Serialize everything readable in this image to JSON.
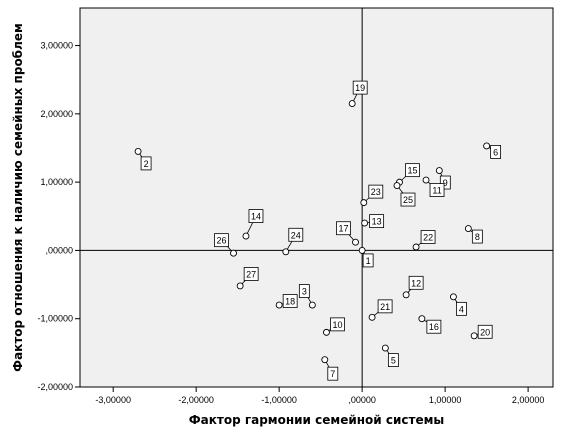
{
  "chart_data": {
    "type": "scatter",
    "xlabel": "Фактор гармонии семейной системы",
    "ylabel": "Фактор отношения к наличию семейных проблем",
    "xlim": [
      -3.4,
      2.3
    ],
    "ylim": [
      -2.0,
      3.55
    ],
    "x_ticks": [
      -3,
      -2,
      -1,
      0,
      1,
      2
    ],
    "x_tick_labels": [
      "-3,00000",
      "-2,00000",
      "-1,00000",
      ",00000",
      "1,00000",
      "2,00000"
    ],
    "y_ticks": [
      -2,
      -1,
      0,
      1,
      2,
      3
    ],
    "y_tick_labels": [
      "-2,00000",
      "-1,00000",
      ",00000",
      "1,00000",
      "2,00000",
      "3,00000"
    ],
    "reference_lines": {
      "x": 0,
      "y": 0
    },
    "grid": false,
    "legend": "none",
    "colors": {
      "plot_bg": "#f0f0f0",
      "marker_fill": "#ffffff",
      "marker_edge": "#000000"
    },
    "points": [
      {
        "label": "1",
        "x": 0.0,
        "y": 0.0
      },
      {
        "label": "2",
        "x": -2.7,
        "y": 1.45
      },
      {
        "label": "3",
        "x": -0.6,
        "y": -0.8
      },
      {
        "label": "4",
        "x": 1.1,
        "y": -0.68
      },
      {
        "label": "5",
        "x": 0.28,
        "y": -1.43
      },
      {
        "label": "6",
        "x": 1.5,
        "y": 1.53
      },
      {
        "label": "7",
        "x": -0.45,
        "y": -1.6
      },
      {
        "label": "8",
        "x": 1.28,
        "y": 0.32
      },
      {
        "label": "9",
        "x": 0.93,
        "y": 1.17
      },
      {
        "label": "10",
        "x": -0.43,
        "y": -1.2
      },
      {
        "label": "11",
        "x": 0.77,
        "y": 1.03
      },
      {
        "label": "12",
        "x": 0.53,
        "y": -0.65
      },
      {
        "label": "13",
        "x": 0.03,
        "y": 0.4
      },
      {
        "label": "14",
        "x": -1.4,
        "y": 0.21
      },
      {
        "label": "15",
        "x": 0.45,
        "y": 1.0
      },
      {
        "label": "16",
        "x": 0.72,
        "y": -1.0
      },
      {
        "label": "17",
        "x": -0.08,
        "y": 0.12
      },
      {
        "label": "18",
        "x": -1.0,
        "y": -0.8
      },
      {
        "label": "19",
        "x": -0.12,
        "y": 2.15
      },
      {
        "label": "20",
        "x": 1.35,
        "y": -1.25
      },
      {
        "label": "21",
        "x": 0.12,
        "y": -0.98
      },
      {
        "label": "22",
        "x": 0.65,
        "y": 0.05
      },
      {
        "label": "23",
        "x": 0.02,
        "y": 0.7
      },
      {
        "label": "24",
        "x": -0.92,
        "y": -0.02
      },
      {
        "label": "25",
        "x": 0.42,
        "y": 0.95
      },
      {
        "label": "26",
        "x": -1.55,
        "y": -0.04
      },
      {
        "label": "27",
        "x": -1.47,
        "y": -0.52
      }
    ]
  }
}
